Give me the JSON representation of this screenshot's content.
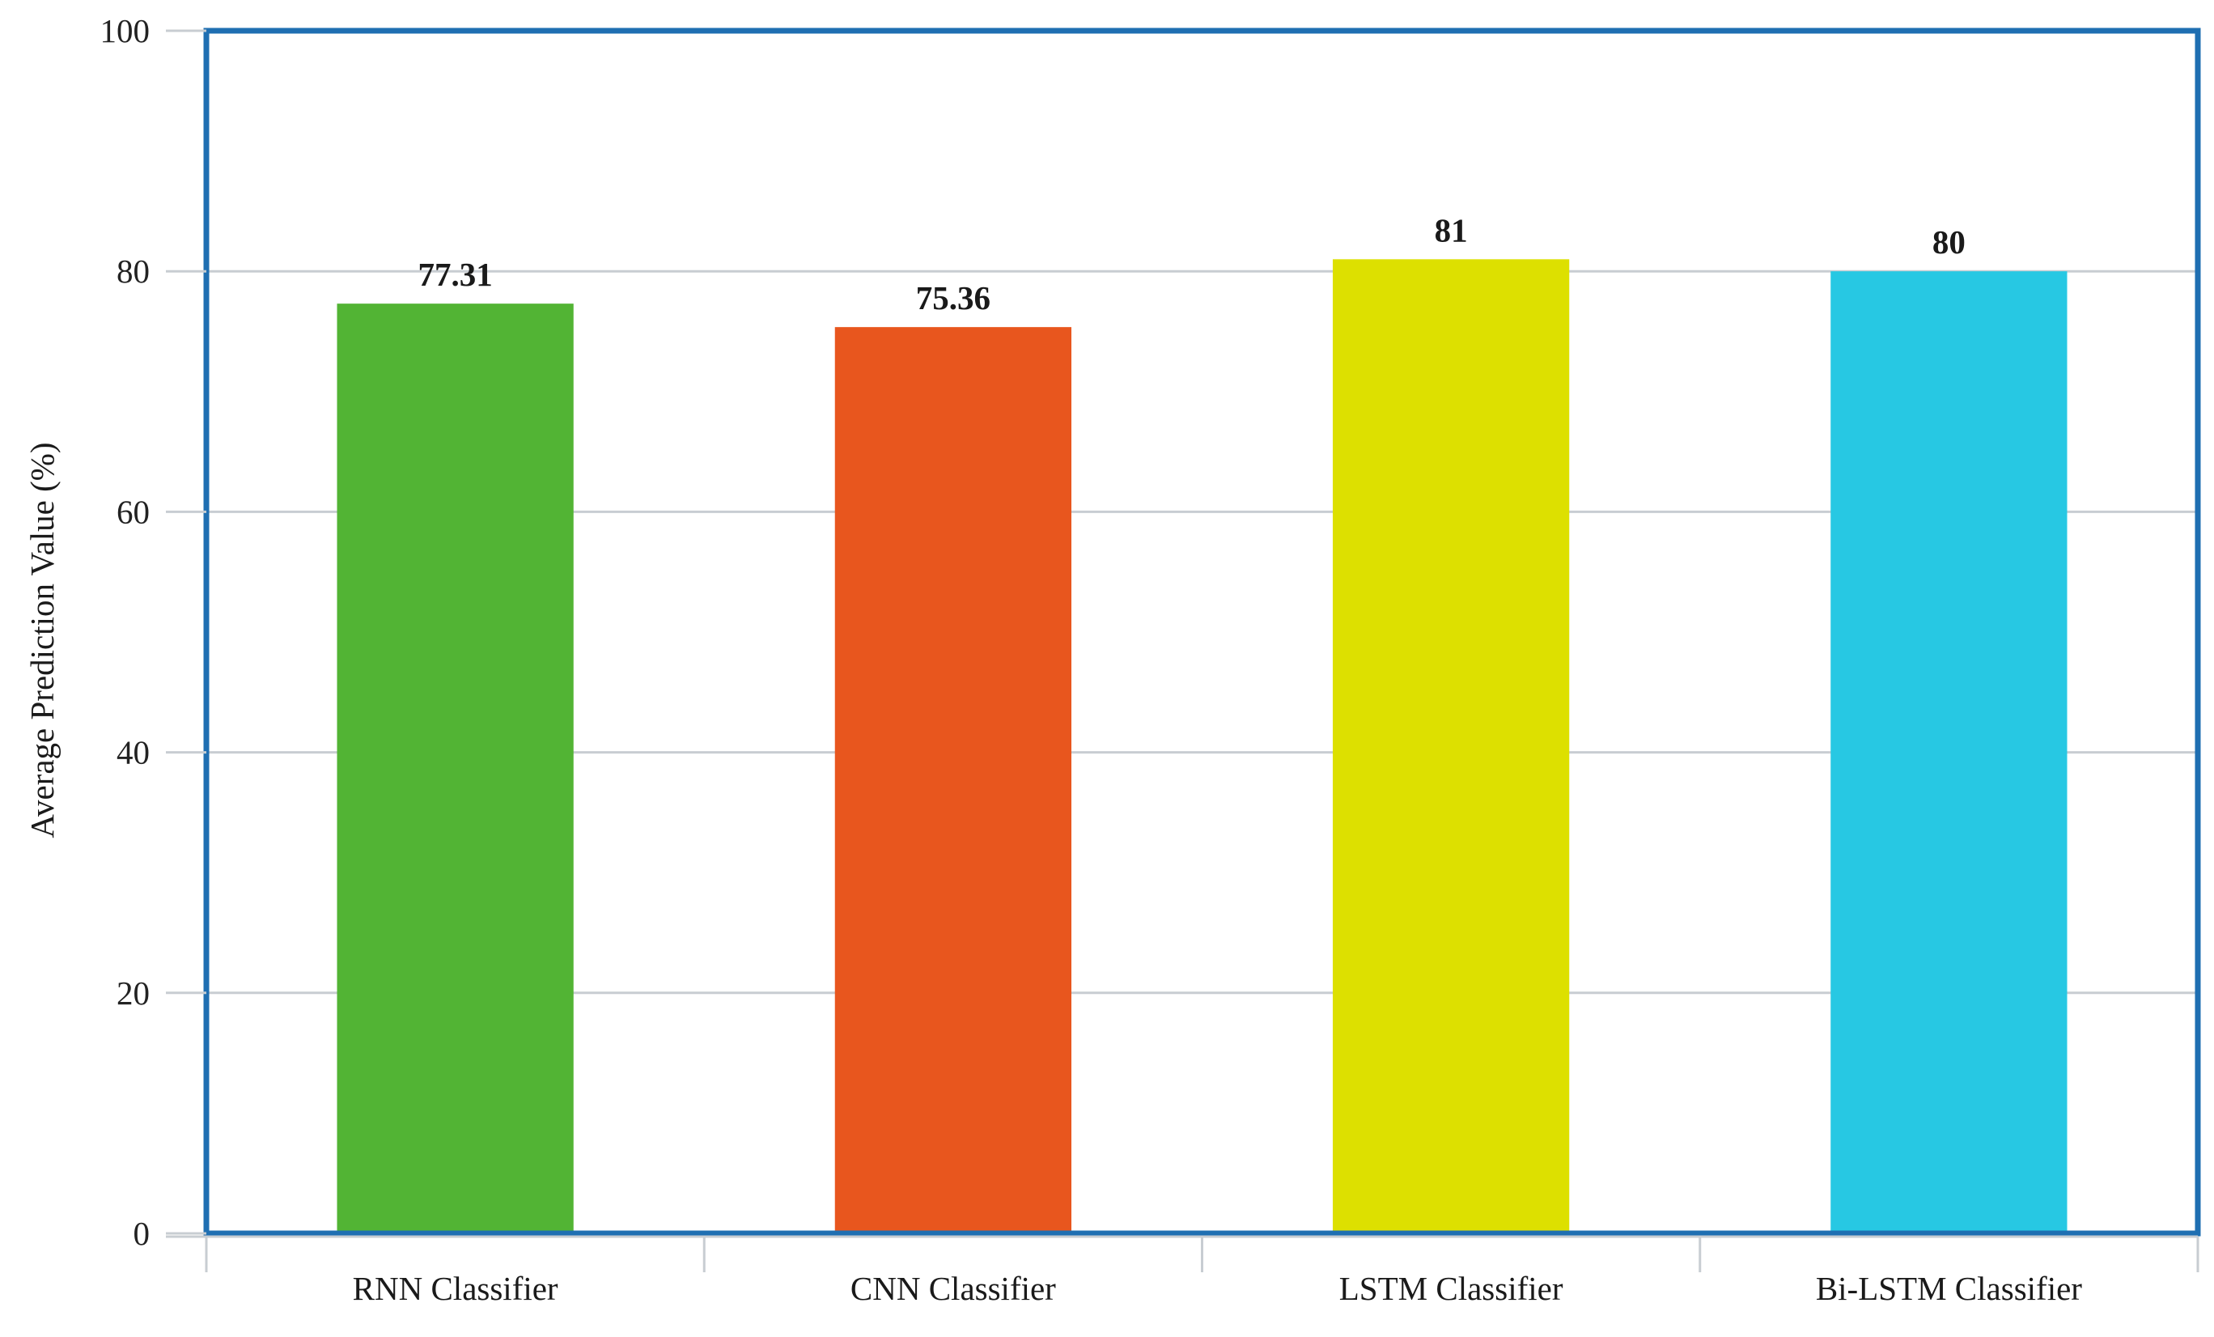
{
  "chart_data": {
    "type": "bar",
    "categories": [
      "RNN Classifier",
      "CNN Classifier",
      "LSTM Classifier",
      "Bi-LSTM Classifier"
    ],
    "values": [
      77.31,
      75.36,
      81,
      80
    ],
    "value_labels": [
      "77.31",
      "75.36",
      "81",
      "80"
    ],
    "colors": [
      "#52b434",
      "#e8561e",
      "#dde000",
      "#27c8e3"
    ],
    "title": "",
    "xlabel": "",
    "ylabel": "Average Prediction Value (%)",
    "ylim": [
      0,
      100
    ],
    "yticks": [
      "0",
      "20",
      "40",
      "60",
      "80",
      "100"
    ],
    "grid": true,
    "legend": "none",
    "frame_color": "#1f6fb2",
    "grid_color": "#c8cdd2"
  }
}
